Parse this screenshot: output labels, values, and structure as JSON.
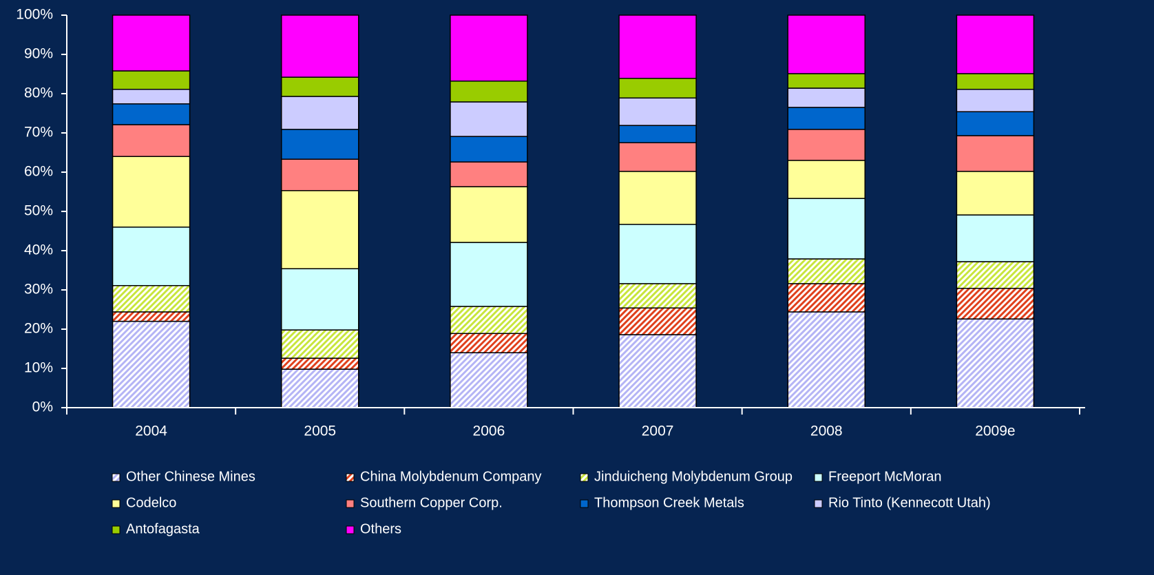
{
  "chart_data": {
    "type": "stacked_bar",
    "categories": [
      "2004",
      "2005",
      "2006",
      "2007",
      "2008",
      "2009e"
    ],
    "series": [
      {
        "name": "Other Chinese Mines",
        "color": "#b4b4f5",
        "hatched": true,
        "values": [
          22,
          9.8,
          14.0,
          18.6,
          24.4,
          22.6
        ]
      },
      {
        "name": "China Molybdenum Company",
        "color": "#e0401c",
        "hatched": true,
        "values": [
          2.4,
          2.8,
          4.9,
          6.8,
          7.2,
          7.8
        ]
      },
      {
        "name": "Jinduicheng Molybdenum Group",
        "color": "#c8e63c",
        "hatched": true,
        "values": [
          6.7,
          7.2,
          6.9,
          6.2,
          6.3,
          6.8
        ]
      },
      {
        "name": "Freeport McMoran",
        "color": "#ccffff",
        "values": [
          14.9,
          15.6,
          16.3,
          15.1,
          15.4,
          11.9
        ]
      },
      {
        "name": "Codelco",
        "color": "#ffff99",
        "values": [
          18,
          19.9,
          14.2,
          13.5,
          9.7,
          11.1
        ]
      },
      {
        "name": "Southern Copper Corp.",
        "color": "#ff8080",
        "values": [
          8.1,
          8.0,
          6.3,
          7.3,
          7.9,
          9.1
        ]
      },
      {
        "name": "Thompson Creek Metals",
        "color": "#0066cc",
        "values": [
          5.3,
          7.6,
          6.5,
          4.4,
          5.6,
          6.1
        ]
      },
      {
        "name": "Rio Tinto (Kennecott Utah)",
        "color": "#ccccff",
        "values": [
          3.7,
          8.4,
          8.8,
          7.0,
          4.9,
          5.7
        ]
      },
      {
        "name": "Antofagasta",
        "color": "#99cc00",
        "values": [
          4.7,
          4.9,
          5.3,
          5.0,
          3.7,
          4.0
        ]
      },
      {
        "name": "Others",
        "color": "#ff00ff",
        "values": [
          14.2,
          15.8,
          16.8,
          16.1,
          14.9,
          14.9
        ]
      }
    ],
    "ylim": [
      0,
      100
    ],
    "yticks": [
      {
        "value": 0,
        "label": "0%"
      },
      {
        "value": 10,
        "label": "10%"
      },
      {
        "value": 20,
        "label": "20%"
      },
      {
        "value": 30,
        "label": "30%"
      },
      {
        "value": 40,
        "label": "40%"
      },
      {
        "value": 50,
        "label": "50%"
      },
      {
        "value": 60,
        "label": "60%"
      },
      {
        "value": 70,
        "label": "70%"
      },
      {
        "value": 80,
        "label": "80%"
      },
      {
        "value": 90,
        "label": "90%"
      },
      {
        "value": 100,
        "label": "100%"
      }
    ]
  }
}
